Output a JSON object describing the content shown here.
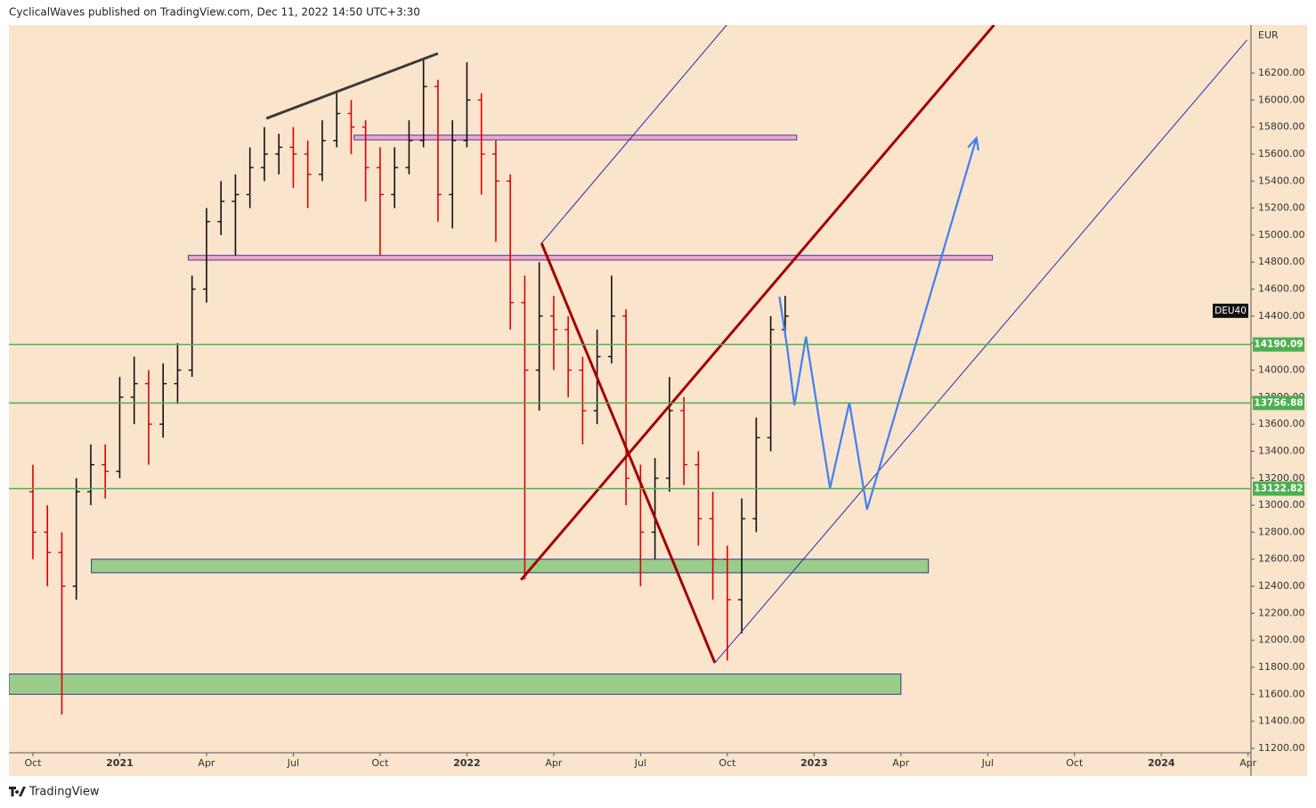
{
  "header": "CyclicalWaves published on TradingView.com, Dec 11, 2022 14:50 UTC+3:30",
  "footer": "TradingView",
  "chart_data": {
    "type": "ohlc",
    "symbol": "DEU40",
    "currency": "EUR",
    "up_color": "#111111",
    "down_color": "#dd0000",
    "x": [
      0,
      0.5,
      1,
      1.5,
      2,
      2.5,
      3,
      3.5,
      4,
      4.5,
      5,
      5.5,
      6,
      6.5,
      7,
      7.5,
      8,
      8.5,
      9,
      9.5,
      10,
      10.5,
      11,
      11.5,
      12,
      12.5,
      13,
      13.5,
      14,
      14.5,
      15,
      15.5,
      16,
      16.5,
      17,
      17.5,
      18,
      18.5,
      19,
      19.5,
      20,
      20.5,
      21,
      21.5,
      22,
      22.5,
      23,
      23.5,
      24,
      24.5,
      25,
      25.5,
      26
    ],
    "open": [
      13100,
      12800,
      12650,
      12400,
      13100,
      13300,
      13250,
      13800,
      13900,
      13600,
      13900,
      14000,
      14600,
      15100,
      15250,
      15300,
      15500,
      15600,
      15650,
      15600,
      15450,
      15700,
      15900,
      15800,
      15500,
      15300,
      15500,
      15700,
      16100,
      15300,
      15700,
      16000,
      15600,
      15400,
      14500,
      14000,
      14400,
      14300,
      14000,
      13700,
      14100,
      14400,
      13200,
      12800,
      13200,
      13700,
      13300,
      12900,
      12600,
      12300,
      12900,
      13500,
      14300
    ],
    "high": [
      13300,
      13000,
      12800,
      13200,
      13450,
      13450,
      13950,
      14100,
      14000,
      14050,
      14200,
      14700,
      15200,
      15400,
      15450,
      15650,
      15800,
      15750,
      15800,
      15700,
      15850,
      16050,
      16000,
      15850,
      15650,
      15650,
      15850,
      16300,
      16150,
      15850,
      16280,
      16050,
      15700,
      15450,
      14700,
      14800,
      14550,
      14400,
      14100,
      14300,
      14700,
      14450,
      13300,
      13350,
      13950,
      13800,
      13400,
      13100,
      12700,
      13050,
      13650,
      14400,
      14550
    ],
    "low": [
      12600,
      12400,
      11450,
      12300,
      13000,
      13050,
      13200,
      13600,
      13300,
      13500,
      13750,
      13950,
      14500,
      15000,
      14850,
      15200,
      15400,
      15450,
      15350,
      15200,
      15400,
      15650,
      15600,
      15250,
      14850,
      15200,
      15450,
      15650,
      15100,
      15050,
      15650,
      15300,
      14950,
      14300,
      12450,
      13700,
      14000,
      13800,
      13450,
      13600,
      14050,
      13000,
      12400,
      12600,
      13100,
      13150,
      12700,
      12300,
      11850,
      12050,
      12800,
      13400,
      14250
    ],
    "close": [
      12800,
      12650,
      12400,
      13100,
      13300,
      13250,
      13800,
      13900,
      13600,
      13900,
      14000,
      14600,
      15100,
      15250,
      15300,
      15500,
      15600,
      15650,
      15600,
      15450,
      15700,
      15900,
      15800,
      15500,
      15300,
      15500,
      15700,
      16100,
      15300,
      15700,
      16000,
      15600,
      15400,
      14500,
      14000,
      14400,
      14300,
      14000,
      13700,
      14100,
      14400,
      13200,
      12800,
      13200,
      13700,
      13300,
      12900,
      12600,
      12300,
      12900,
      13500,
      14300,
      14400
    ],
    "xlim": [
      -0.83,
      42.1
    ],
    "ylim": [
      11167,
      16556
    ],
    "xticks": [
      {
        "value": 0,
        "label": "Oct"
      },
      {
        "value": 3,
        "label": "2021"
      },
      {
        "value": 6,
        "label": "Apr"
      },
      {
        "value": 9,
        "label": "Jul"
      },
      {
        "value": 12,
        "label": "Oct"
      },
      {
        "value": 15,
        "label": "2022"
      },
      {
        "value": 18,
        "label": "Apr"
      },
      {
        "value": 21,
        "label": "Jul"
      },
      {
        "value": 24,
        "label": "Oct"
      },
      {
        "value": 27,
        "label": "2023"
      },
      {
        "value": 30,
        "label": "Apr"
      },
      {
        "value": 33,
        "label": "Jul"
      },
      {
        "value": 36,
        "label": "Oct"
      },
      {
        "value": 39,
        "label": "2024"
      },
      {
        "value": 42,
        "label": "Apr"
      }
    ],
    "yticks": [
      {
        "value": 11200,
        "label": "11200.00"
      },
      {
        "value": 11400,
        "label": "11400.00"
      },
      {
        "value": 11600,
        "label": "11600.00"
      },
      {
        "value": 11800,
        "label": "11800.00"
      },
      {
        "value": 12000,
        "label": "12000.00"
      },
      {
        "value": 12200,
        "label": "12200.00"
      },
      {
        "value": 12400,
        "label": "12400.00"
      },
      {
        "value": 12600,
        "label": "12600.00"
      },
      {
        "value": 12800,
        "label": "12800.00"
      },
      {
        "value": 13000,
        "label": "13000.00"
      },
      {
        "value": 13200,
        "label": "13200.00"
      },
      {
        "value": 13400,
        "label": "13400.00"
      },
      {
        "value": 13600,
        "label": "13600.00"
      },
      {
        "value": 13800,
        "label": "13800.00"
      },
      {
        "value": 14000,
        "label": "14000.00"
      },
      {
        "value": 14200,
        "label": "14200.00"
      },
      {
        "value": 14400,
        "label": "14400.00"
      },
      {
        "value": 14600,
        "label": "14600.00"
      },
      {
        "value": 14800,
        "label": "14800.00"
      },
      {
        "value": 15000,
        "label": "15000.00"
      },
      {
        "value": 15200,
        "label": "15200.00"
      },
      {
        "value": 15400,
        "label": "15400.00"
      },
      {
        "value": 15600,
        "label": "15600.00"
      },
      {
        "value": 15800,
        "label": "15800.00"
      },
      {
        "value": 16000,
        "label": "16000.00"
      },
      {
        "value": 16200,
        "label": "16200.00"
      }
    ],
    "levels": [
      {
        "value": 14190.09,
        "color": "#4caf50"
      },
      {
        "value": 13756.88,
        "color": "#4caf50"
      },
      {
        "value": 13122.82,
        "color": "#4caf50"
      }
    ],
    "zones": [
      {
        "x": [
          11.1,
          26.4
        ],
        "y": [
          15705,
          15740
        ],
        "color": "#f2a7c3",
        "border": "#3b3fa8"
      },
      {
        "x": [
          5.37,
          33.16
        ],
        "y": [
          14815,
          14850
        ],
        "color": "#f2a7c3",
        "border": "#3b3fa8"
      },
      {
        "x": [
          2.02,
          30.95
        ],
        "y": [
          12500,
          12600
        ],
        "color": "#9ccc8a",
        "border": "#2a3c8f"
      },
      {
        "x": [
          -0.83,
          30.0
        ],
        "y": [
          11600,
          11750
        ],
        "color": "#9ccc8a",
        "border": "#2a3c8f"
      }
    ],
    "lines": [
      {
        "x": [
          8.07,
          14.0
        ],
        "y": [
          15864,
          16345
        ],
        "color": "#3a3a3a",
        "width": 3
      },
      {
        "x": [
          16.87,
          33.22
        ],
        "y": [
          12447,
          16556
        ],
        "color": "#a30000",
        "width": 3
      },
      {
        "x": [
          17.58,
          23.57
        ],
        "y": [
          14940,
          11833
        ],
        "color": "#a30000",
        "width": 3
      },
      {
        "x": [
          17.58,
          23.98
        ],
        "y": [
          14940,
          16556
        ],
        "color": "#2a2aa8",
        "width": 1
      },
      {
        "x": [
          23.57,
          41.96
        ],
        "y": [
          11833,
          16444
        ],
        "color": "#2a2aa8",
        "width": 1
      },
      {
        "x": [
          25.8,
          26.07,
          26.32,
          26.72,
          27.55,
          28.22,
          28.83,
          32.61
        ],
        "y": [
          14544,
          14168,
          13740,
          14248,
          13126,
          13760,
          12968,
          15718
        ],
        "color": "#3f7ff0",
        "width": 2.2
      }
    ]
  }
}
